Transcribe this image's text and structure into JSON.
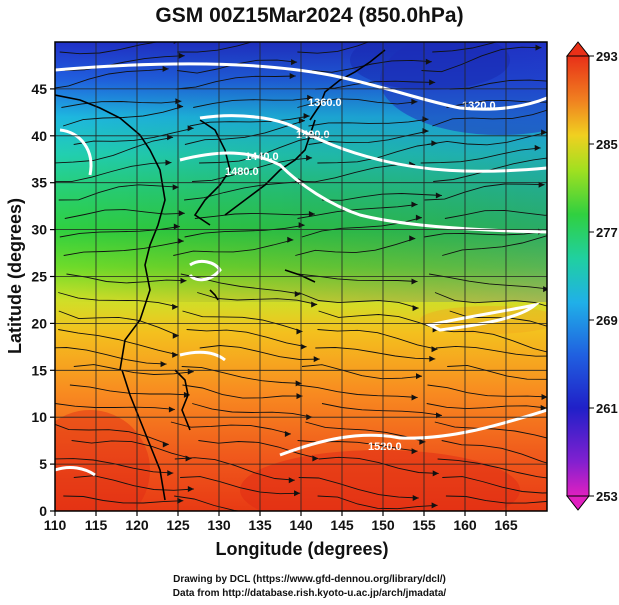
{
  "title": "GSM 00Z15Mar2024 (850.0hPa)",
  "axes": {
    "xlabel": "Longitude (degrees)",
    "ylabel": "Latitude  (degrees)",
    "x_ticks": [
      "110",
      "115",
      "120",
      "125",
      "130",
      "135",
      "140",
      "145",
      "150",
      "155",
      "160",
      "165"
    ],
    "y_ticks": [
      "0",
      "5",
      "10",
      "15",
      "20",
      "25",
      "30",
      "35",
      "40",
      "45"
    ],
    "xlim": [
      110,
      170
    ],
    "ylim": [
      0,
      50
    ]
  },
  "colorbar": {
    "labels": [
      "293",
      "285",
      "277",
      "269",
      "261",
      "253"
    ],
    "range": [
      253,
      293
    ]
  },
  "contours": {
    "labels": [
      "1360.0",
      "1320.0",
      "1400.0",
      "1440.0",
      "1480.0",
      "1520.0"
    ]
  },
  "credits": {
    "line1": "Drawing by DCL (https://www.gfd-dennou.org/library/dcl/)",
    "line2": "Data from http://database.rish.kyoto-u.ac.jp/arch/jmadata/"
  }
}
